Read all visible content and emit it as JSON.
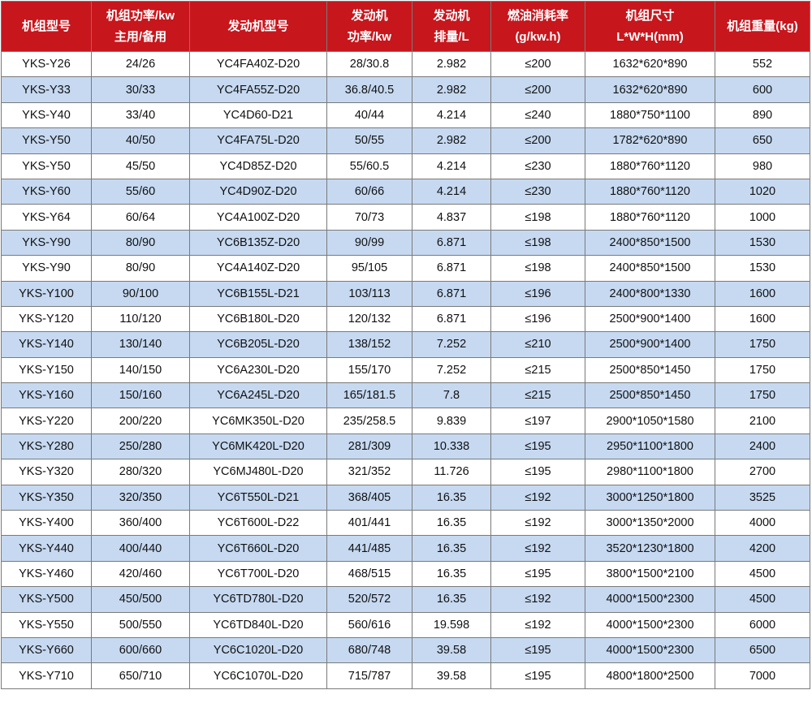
{
  "colors": {
    "header_bg": "#c8161d",
    "header_text": "#ffffff",
    "alt_row": "#c6d9f1",
    "border": "#7a7a7a"
  },
  "headers": [
    [
      "机组型号"
    ],
    [
      "机组功率/kw",
      "主用/备用"
    ],
    [
      "发动机型号"
    ],
    [
      "发动机",
      "功率/kw"
    ],
    [
      "发动机",
      "排量/L"
    ],
    [
      "燃油消耗率",
      "(g/kw.h)"
    ],
    [
      "机组尺寸",
      "L*W*H(mm)"
    ],
    [
      "机组重量(kg)"
    ]
  ],
  "rows": [
    [
      "YKS-Y26",
      "24/26",
      "YC4FA40Z-D20",
      "28/30.8",
      "2.982",
      "≤200",
      "1632*620*890",
      "552"
    ],
    [
      "YKS-Y33",
      "30/33",
      "YC4FA55Z-D20",
      "36.8/40.5",
      "2.982",
      "≤200",
      "1632*620*890",
      "600"
    ],
    [
      "YKS-Y40",
      "33/40",
      "YC4D60-D21",
      "40/44",
      "4.214",
      "≤240",
      "1880*750*1100",
      "890"
    ],
    [
      "YKS-Y50",
      "40/50",
      "YC4FA75L-D20",
      "50/55",
      "2.982",
      "≤200",
      "1782*620*890",
      "650"
    ],
    [
      "YKS-Y50",
      "45/50",
      "YC4D85Z-D20",
      "55/60.5",
      "4.214",
      "≤230",
      "1880*760*1120",
      "980"
    ],
    [
      "YKS-Y60",
      "55/60",
      "YC4D90Z-D20",
      "60/66",
      "4.214",
      "≤230",
      "1880*760*1120",
      "1020"
    ],
    [
      "YKS-Y64",
      "60/64",
      "YC4A100Z-D20",
      "70/73",
      "4.837",
      "≤198",
      "1880*760*1120",
      "1000"
    ],
    [
      "YKS-Y90",
      "80/90",
      "YC6B135Z-D20",
      "90/99",
      "6.871",
      "≤198",
      "2400*850*1500",
      "1530"
    ],
    [
      "YKS-Y90",
      "80/90",
      "YC4A140Z-D20",
      "95/105",
      "6.871",
      "≤198",
      "2400*850*1500",
      "1530"
    ],
    [
      "YKS-Y100",
      "90/100",
      "YC6B155L-D21",
      "103/113",
      "6.871",
      "≤196",
      "2400*800*1330",
      "1600"
    ],
    [
      "YKS-Y120",
      "110/120",
      "YC6B180L-D20",
      "120/132",
      "6.871",
      "≤196",
      "2500*900*1400",
      "1600"
    ],
    [
      "YKS-Y140",
      "130/140",
      "YC6B205L-D20",
      "138/152",
      "7.252",
      "≤210",
      "2500*900*1400",
      "1750"
    ],
    [
      "YKS-Y150",
      "140/150",
      "YC6A230L-D20",
      "155/170",
      "7.252",
      "≤215",
      "2500*850*1450",
      "1750"
    ],
    [
      "YKS-Y160",
      "150/160",
      "YC6A245L-D20",
      "165/181.5",
      "7.8",
      "≤215",
      "2500*850*1450",
      "1750"
    ],
    [
      "YKS-Y220",
      "200/220",
      "YC6MK350L-D20",
      "235/258.5",
      "9.839",
      "≤197",
      "2900*1050*1580",
      "2100"
    ],
    [
      "YKS-Y280",
      "250/280",
      "YC6MK420L-D20",
      "281/309",
      "10.338",
      "≤195",
      "2950*1100*1800",
      "2400"
    ],
    [
      "YKS-Y320",
      "280/320",
      "YC6MJ480L-D20",
      "321/352",
      "11.726",
      "≤195",
      "2980*1100*1800",
      "2700"
    ],
    [
      "YKS-Y350",
      "320/350",
      "YC6T550L-D21",
      "368/405",
      "16.35",
      "≤192",
      "3000*1250*1800",
      "3525"
    ],
    [
      "YKS-Y400",
      "360/400",
      "YC6T600L-D22",
      "401/441",
      "16.35",
      "≤192",
      "3000*1350*2000",
      "4000"
    ],
    [
      "YKS-Y440",
      "400/440",
      "YC6T660L-D20",
      "441/485",
      "16.35",
      "≤192",
      "3520*1230*1800",
      "4200"
    ],
    [
      "YKS-Y460",
      "420/460",
      "YC6T700L-D20",
      "468/515",
      "16.35",
      "≤195",
      "3800*1500*2100",
      "4500"
    ],
    [
      "YKS-Y500",
      "450/500",
      "YC6TD780L-D20",
      "520/572",
      "16.35",
      "≤192",
      "4000*1500*2300",
      "4500"
    ],
    [
      "YKS-Y550",
      "500/550",
      "YC6TD840L-D20",
      "560/616",
      "19.598",
      "≤192",
      "4000*1500*2300",
      "6000"
    ],
    [
      "YKS-Y660",
      "600/660",
      "YC6C1020L-D20",
      "680/748",
      "39.58",
      "≤195",
      "4000*1500*2300",
      "6500"
    ],
    [
      "YKS-Y710",
      "650/710",
      "YC6C1070L-D20",
      "715/787",
      "39.58",
      "≤195",
      "4800*1800*2500",
      "7000"
    ]
  ]
}
